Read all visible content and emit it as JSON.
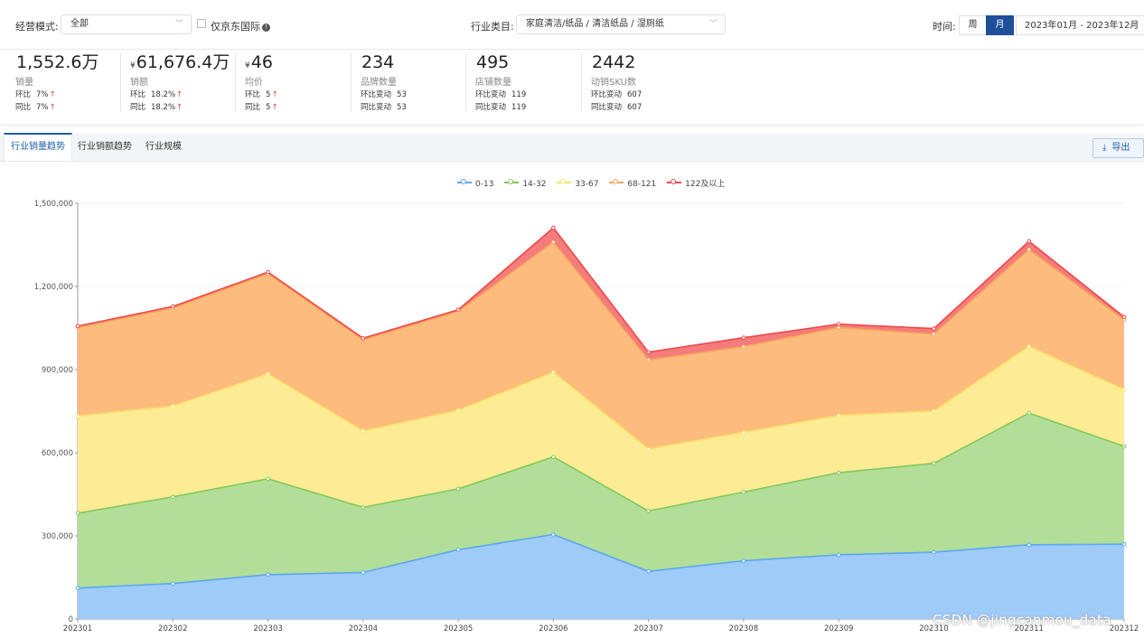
{
  "filters": {
    "mode_label": "经营模式:",
    "mode_value": "全部",
    "jd_intl_label": "仅京东国际",
    "category_label": "行业类目:",
    "category_value": "家庭清洁/纸品 / 清洁纸品 / 湿厕纸",
    "time_label": "时间:",
    "week_btn": "周",
    "month_btn": "月",
    "date_range": "2023年01月 - 2023年12月"
  },
  "metrics": [
    {
      "currency": "",
      "value": "1,552.6万",
      "name": "销量",
      "rows": [
        {
          "label": "环比",
          "num": "7%",
          "arrow": "↑"
        },
        {
          "label": "同比",
          "num": "7%",
          "arrow": "↑"
        }
      ]
    },
    {
      "currency": "¥",
      "value": "61,676.4万",
      "name": "销额",
      "rows": [
        {
          "label": "环比",
          "num": "18.2%",
          "arrow": "↑"
        },
        {
          "label": "同比",
          "num": "18.2%",
          "arrow": "↑"
        }
      ]
    },
    {
      "currency": "¥",
      "value": "46",
      "name": "均价",
      "rows": [
        {
          "label": "环比",
          "num": "5",
          "arrow": "↑"
        },
        {
          "label": "同比",
          "num": "5",
          "arrow": "↑"
        }
      ]
    },
    {
      "currency": "",
      "value": "234",
      "name": "品牌数量",
      "rows": [
        {
          "label": "环比变动",
          "num": "53",
          "arrow": ""
        },
        {
          "label": "同比变动",
          "num": "53",
          "arrow": ""
        }
      ]
    },
    {
      "currency": "",
      "value": "495",
      "name": "店铺数量",
      "rows": [
        {
          "label": "环比变动",
          "num": "119",
          "arrow": ""
        },
        {
          "label": "同比变动",
          "num": "119",
          "arrow": ""
        }
      ]
    },
    {
      "currency": "",
      "value": "2442",
      "name": "动销SKU数",
      "rows": [
        {
          "label": "环比变动",
          "num": "607",
          "arrow": ""
        },
        {
          "label": "同比变动",
          "num": "607",
          "arrow": ""
        }
      ]
    }
  ],
  "tabs": [
    "行业销量趋势",
    "行业销额趋势",
    "行业规模"
  ],
  "export_label": "导出",
  "watermark": "CSDN @jingcanmou_data",
  "chart_data": {
    "type": "area",
    "stacked": true,
    "legend_position": "top-center",
    "categories": [
      "202301",
      "202302",
      "202303",
      "202304",
      "202305",
      "202306",
      "202307",
      "202308",
      "202309",
      "202310",
      "202311",
      "202312"
    ],
    "ylim": [
      0,
      1500000
    ],
    "yticks": [
      0,
      300000,
      600000,
      900000,
      1200000,
      1500000
    ],
    "ytick_labels": [
      "0",
      "300,000",
      "600,000",
      "900,000",
      "1,200,000",
      "1,500,000"
    ],
    "series": [
      {
        "name": "0-13",
        "color": "#5aa7f0",
        "fill": "#9fcbf9",
        "values": [
          112000,
          128000,
          160000,
          168000,
          250000,
          305000,
          172000,
          210000,
          232000,
          241000,
          268000,
          270000
        ]
      },
      {
        "name": "14-32",
        "color": "#83c85a",
        "fill": "#b2de9a",
        "values": [
          270000,
          313000,
          346000,
          235000,
          220000,
          280000,
          218000,
          248000,
          296000,
          321000,
          475000,
          353000
        ]
      },
      {
        "name": "33-67",
        "color": "#fbe36a",
        "fill": "#fdec95",
        "values": [
          350000,
          327000,
          378000,
          275000,
          283000,
          305000,
          223000,
          215000,
          206000,
          188000,
          240000,
          205000
        ]
      },
      {
        "name": "68-121",
        "color": "#f8a45b",
        "fill": "#fdbc7e",
        "values": [
          320000,
          354000,
          362000,
          330000,
          357000,
          470000,
          322000,
          310000,
          318000,
          278000,
          350000,
          252000
        ]
      },
      {
        "name": "122及以上",
        "color": "#ef4848",
        "fill": "#f47c7c",
        "values": [
          5000,
          6000,
          6000,
          5000,
          6000,
          52000,
          28000,
          32000,
          12000,
          20000,
          30000,
          10000
        ]
      }
    ]
  }
}
